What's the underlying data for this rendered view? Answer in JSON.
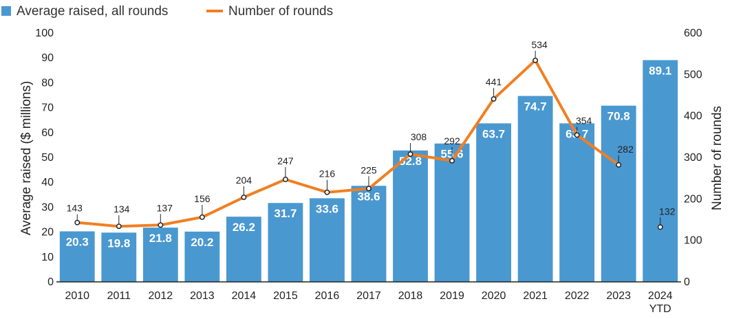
{
  "chart_data": {
    "type": "bar",
    "categories": [
      "2010",
      "2011",
      "2012",
      "2013",
      "2014",
      "2015",
      "2016",
      "2017",
      "2018",
      "2019",
      "2020",
      "2021",
      "2022",
      "2023",
      "2024\nYTD"
    ],
    "series": [
      {
        "name": "Average raised, all rounds",
        "type": "bar",
        "axis": "left",
        "color": "#4a98d0",
        "values": [
          20.3,
          19.8,
          21.8,
          20.2,
          26.2,
          31.7,
          33.6,
          38.6,
          52.8,
          55.6,
          63.7,
          74.7,
          63.7,
          70.8,
          89.1
        ],
        "labels": [
          "20.3",
          "19.8",
          "21.8",
          "20.2",
          "26.2",
          "31.7",
          "33.6",
          "38.6",
          "52.8",
          "55.6",
          "63.7",
          "74.7",
          "63.7",
          "70.8",
          "89.1"
        ]
      },
      {
        "name": "Number of rounds",
        "type": "line",
        "axis": "right",
        "color": "#f07f22",
        "values": [
          143,
          134,
          137,
          156,
          204,
          247,
          216,
          225,
          308,
          292,
          441,
          534,
          354,
          282,
          132
        ],
        "labels": [
          "143",
          "134",
          "137",
          "156",
          "204",
          "247",
          "216",
          "225",
          "308",
          "292",
          "441",
          "534",
          "354",
          "282",
          "132"
        ],
        "line_ends_at_index": 13
      }
    ],
    "ylabel": "Average raised ($ millions)",
    "ylim": [
      0,
      100
    ],
    "yticks": [
      "0",
      "10",
      "20",
      "30",
      "40",
      "50",
      "60",
      "70",
      "80",
      "90",
      "100"
    ],
    "y2label": "Number of rounds",
    "y2lim": [
      0,
      600
    ],
    "y2ticks": [
      "0",
      "100",
      "200",
      "300",
      "400",
      "500",
      "600"
    ],
    "legend_position": "top-left",
    "grid": false
  }
}
